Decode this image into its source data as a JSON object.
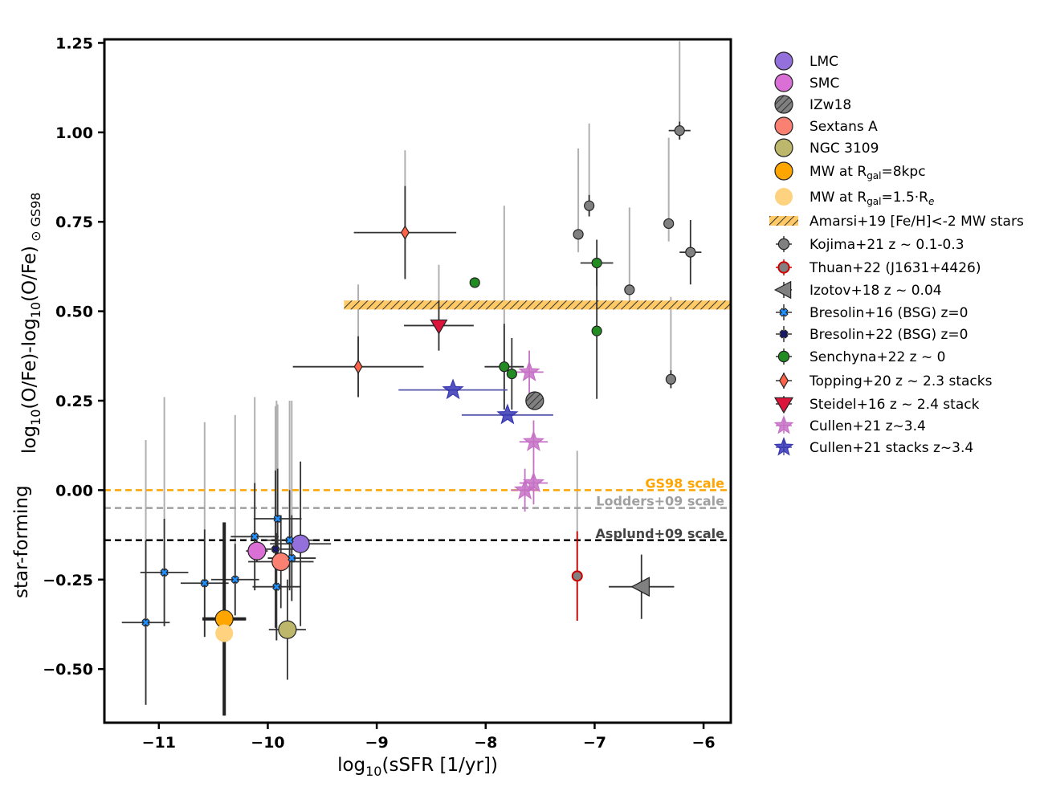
{
  "chart_data": {
    "type": "scatter",
    "xlabel": "log10(sSFR [1/yr])",
    "ylabel_main": "log10(O/Fe)-log10(O/Fe)",
    "ylabel_sub": "⊙ GS98",
    "ylabel_extra": "star-forming",
    "xlim": [
      -11.5,
      -5.75
    ],
    "ylim": [
      -0.65,
      1.26
    ],
    "x_ticks": [
      -11,
      -10,
      -9,
      -8,
      -7,
      -6
    ],
    "x_tick_labels": [
      "−11",
      "−10",
      "−9",
      "−8",
      "−7",
      "−6"
    ],
    "y_ticks": [
      -0.5,
      -0.25,
      0.0,
      0.25,
      0.5,
      0.75,
      1.0,
      1.25
    ],
    "y_tick_labels": [
      "−0.50",
      "−0.25",
      "0.00",
      "0.25",
      "0.50",
      "0.75",
      "1.00",
      "1.25"
    ],
    "reference_lines": [
      {
        "name": "GS98 scale",
        "y": 0.0,
        "color": "#ffa500",
        "label": "GS98 scale"
      },
      {
        "name": "Lodders+09 scale",
        "y": -0.05,
        "color": "#a0a0a0",
        "label": "Lodders+09 scale"
      },
      {
        "name": "Asplund+09 scale",
        "y": -0.14,
        "color": "#000000",
        "label": "Asplund+09 scale"
      }
    ],
    "amarsi_band": {
      "x0": -9.3,
      "x1": -5.75,
      "y0": 0.505,
      "y1": 0.53,
      "color": "#ffa500",
      "label": "Amarsi+19 [Fe/H]<-2 MW stars"
    },
    "series": [
      {
        "name": "LMC",
        "marker": "circle",
        "color": "#9370db",
        "size": 11,
        "points": [
          {
            "x": -9.7,
            "y": -0.15,
            "xerr": 0.28,
            "yerr": 0.23
          }
        ]
      },
      {
        "name": "SMC",
        "marker": "circle",
        "color": "#da70d6",
        "size": 11,
        "points": [
          {
            "x": -10.1,
            "y": -0.17,
            "xerr": 0.1,
            "yerr": 0.03
          }
        ]
      },
      {
        "name": "IZw18",
        "marker": "circle",
        "color": "#808080",
        "hatch": true,
        "size": 11,
        "points": [
          {
            "x": -7.55,
            "y": 0.25,
            "xerr": 0.0,
            "yerr": 0.0
          }
        ]
      },
      {
        "name": "Sextans A",
        "marker": "circle",
        "color": "#fa8072",
        "size": 11,
        "points": [
          {
            "x": -9.88,
            "y": -0.2,
            "xerr": 0.3,
            "yerr": 0.13
          }
        ]
      },
      {
        "name": "NGC 3109",
        "marker": "circle",
        "color": "#bdb76b",
        "size": 11,
        "points": [
          {
            "x": -9.82,
            "y": -0.39,
            "xerr": 0.17,
            "yerr": 0.14
          }
        ]
      },
      {
        "name": "MW at R_gal=8kpc",
        "marker": "circle",
        "color": "#ffa500",
        "size": 11,
        "points": [
          {
            "x": -10.4,
            "y": -0.36,
            "xerr": 0.2,
            "yerr": 0.27
          }
        ]
      },
      {
        "name": "MW at R_gal=1.5·R_e",
        "marker": "circle",
        "color": "#ffd280",
        "size": 11,
        "edge": "none",
        "points": [
          {
            "x": -10.4,
            "y": -0.4,
            "xerr": 0.0,
            "yerr": 0.0
          }
        ]
      },
      {
        "name": "Kojima+21 z~0.1-0.3",
        "marker": "circle",
        "color": "#808080",
        "size": 6,
        "points": [
          {
            "x": -6.22,
            "y": 1.005,
            "xerr": 0.1,
            "yerr": 0.025,
            "grey_up": 0.25
          },
          {
            "x": -7.05,
            "y": 0.795,
            "xerr": 0.0,
            "yerr": 0.03,
            "grey_up": 0.23
          },
          {
            "x": -7.15,
            "y": 0.715,
            "xerr": 0.0,
            "yerr": 0.0,
            "grey_up": 0.24
          },
          {
            "x": -6.32,
            "y": 0.745,
            "xerr": 0.0,
            "yerr": 0.0,
            "grey_up": 0.24
          },
          {
            "x": -6.12,
            "y": 0.665,
            "xerr": 0.1,
            "yerr": 0.09
          },
          {
            "x": -6.68,
            "y": 0.56,
            "xerr": 0.0,
            "yerr": 0.0,
            "grey_up": 0.23
          },
          {
            "x": -6.3,
            "y": 0.31,
            "xerr": 0.0,
            "yerr": 0.025,
            "grey_up": 0.23
          }
        ]
      },
      {
        "name": "Thuan+22 (J1631+4426)",
        "marker": "circle",
        "color": "#808080",
        "edge": "#cc0000",
        "size": 6,
        "errcolor": "#cc0000",
        "points": [
          {
            "x": -7.16,
            "y": -0.24,
            "xerr": 0.0,
            "yerr": 0.125,
            "grey_up": 0.35
          }
        ]
      },
      {
        "name": "Izotov+18 z~0.04",
        "marker": "triangle-left",
        "color": "#808080",
        "size": 12,
        "points": [
          {
            "x": -6.57,
            "y": -0.27,
            "xerr": 0.3,
            "yerr": 0.09
          }
        ]
      },
      {
        "name": "Bresolin+16 (BSG) z=0",
        "marker": "x",
        "color": "#1e90ff",
        "size": 6,
        "points": [
          {
            "x": -11.12,
            "y": -0.37,
            "xerr": 0.22,
            "yerr": 0.23,
            "grey_up": 0.51
          },
          {
            "x": -10.95,
            "y": -0.23,
            "xerr": 0.22,
            "yerr": 0.15,
            "grey_up": 0.49
          },
          {
            "x": -10.58,
            "y": -0.26,
            "xerr": 0.22,
            "yerr": 0.15,
            "grey_up": 0.45
          },
          {
            "x": -10.3,
            "y": -0.25,
            "xerr": 0.22,
            "yerr": 0.1,
            "grey_up": 0.46
          },
          {
            "x": -10.12,
            "y": -0.13,
            "xerr": 0.22,
            "yerr": 0.15,
            "grey_up": 0.39
          },
          {
            "x": -9.92,
            "y": -0.27,
            "xerr": 0.22,
            "yerr": 0.15,
            "grey_up": 0.52
          },
          {
            "x": -9.91,
            "y": -0.08,
            "xerr": 0.22,
            "yerr": 0.14,
            "grey_up": 0.32
          },
          {
            "x": -9.8,
            "y": -0.14,
            "xerr": 0.22,
            "yerr": 0.14,
            "grey_up": 0.39
          },
          {
            "x": -9.78,
            "y": -0.19,
            "xerr": 0.22,
            "yerr": 0.12,
            "grey_up": 0.44
          }
        ]
      },
      {
        "name": "Bresolin+22 (BSG) z=0",
        "marker": "x",
        "color": "#191970",
        "size": 6,
        "points": [
          {
            "x": -9.93,
            "y": -0.165,
            "xerr": 0.22,
            "yerr": 0.22,
            "grey_up": 0.4
          }
        ]
      },
      {
        "name": "Senchyna+22 z~0",
        "marker": "circle",
        "color": "#228b22",
        "size": 6,
        "points": [
          {
            "x": -8.1,
            "y": 0.58,
            "xerr": 0.0,
            "yerr": 0.0
          },
          {
            "x": -7.83,
            "y": 0.345,
            "xerr": 0.18,
            "yerr": 0.12,
            "grey_up": 0.45
          },
          {
            "x": -7.76,
            "y": 0.325,
            "xerr": 0.0,
            "yerr": 0.1
          },
          {
            "x": -6.98,
            "y": 0.635,
            "xerr": 0.15,
            "yerr": 0.065
          },
          {
            "x": -6.98,
            "y": 0.445,
            "xerr": 0.0,
            "yerr": 0.19
          }
        ]
      },
      {
        "name": "Topping+20 z~2.3 stacks",
        "marker": "diamond",
        "color": "#ff6347",
        "size": 8,
        "points": [
          {
            "x": -8.74,
            "y": 0.72,
            "xerr": 0.47,
            "yerr": 0.13,
            "grey_up": 0.23
          },
          {
            "x": -9.17,
            "y": 0.345,
            "xerr": 0.6,
            "yerr": 0.085,
            "grey_up": 0.23
          }
        ]
      },
      {
        "name": "Steidel+16 z~2.4 stack",
        "marker": "triangle-down",
        "color": "#dc143c",
        "size": 10,
        "points": [
          {
            "x": -8.43,
            "y": 0.46,
            "xerr": 0.32,
            "yerr": 0.07,
            "grey_up": 0.17
          }
        ]
      },
      {
        "name": "Cullen+21 z~3.4",
        "marker": "star",
        "color": "#c571c5",
        "size": 12,
        "points": [
          {
            "x": -7.6,
            "y": 0.33,
            "xerr": 0.13,
            "yerr": 0.06
          },
          {
            "x": -7.56,
            "y": 0.135,
            "xerr": 0.13,
            "yerr": 0.06
          },
          {
            "x": -7.56,
            "y": 0.02,
            "xerr": 0.13,
            "yerr": 0.06
          },
          {
            "x": -7.64,
            "y": 0.0,
            "xerr": 0.13,
            "yerr": 0.06
          }
        ]
      },
      {
        "name": "Cullen+21 stacks z~3.4",
        "marker": "star",
        "color": "#3636b4",
        "size": 12,
        "points": [
          {
            "x": -8.3,
            "y": 0.28,
            "xerr": 0.5,
            "yerr": 0.0
          },
          {
            "x": -7.8,
            "y": 0.21,
            "xerr": 0.42,
            "yerr": 0.0
          }
        ]
      }
    ],
    "legend": [
      {
        "label": "LMC",
        "sub": "",
        "suffix": ""
      },
      {
        "label": "SMC",
        "sub": "",
        "suffix": ""
      },
      {
        "label": "IZw18",
        "sub": "",
        "suffix": ""
      },
      {
        "label": "Sextans A",
        "sub": "",
        "suffix": ""
      },
      {
        "label": "NGC 3109",
        "sub": "",
        "suffix": ""
      },
      {
        "label": "MW at R",
        "sub": "gal",
        "suffix": "=8kpc"
      },
      {
        "label": "MW at R",
        "sub": "gal",
        "suffix": "=1.5·R",
        "sub2": "e"
      },
      {
        "label": "Amarsi+19 [Fe/H]<-2 MW stars",
        "sub": "",
        "suffix": ""
      },
      {
        "label": "Kojima+21 z ~ 0.1-0.3",
        "sub": "",
        "suffix": ""
      },
      {
        "label": "Thuan+22 (J1631+4426)",
        "sub": "",
        "suffix": ""
      },
      {
        "label": "Izotov+18 z ~ 0.04",
        "sub": "",
        "suffix": ""
      },
      {
        "label": "Bresolin+16 (BSG) z=0",
        "sub": "",
        "suffix": ""
      },
      {
        "label": "Bresolin+22 (BSG) z=0",
        "sub": "",
        "suffix": ""
      },
      {
        "label": "Senchyna+22 z ~ 0",
        "sub": "",
        "suffix": ""
      },
      {
        "label": "Topping+20 z ~ 2.3 stacks",
        "sub": "",
        "suffix": ""
      },
      {
        "label": "Steidel+16 z ~ 2.4 stack",
        "sub": "",
        "suffix": ""
      },
      {
        "label": "Cullen+21 z~3.4",
        "sub": "",
        "suffix": ""
      },
      {
        "label": "Cullen+21 stacks z~3.4",
        "sub": "",
        "suffix": ""
      }
    ],
    "legend_position": "outside-right"
  }
}
